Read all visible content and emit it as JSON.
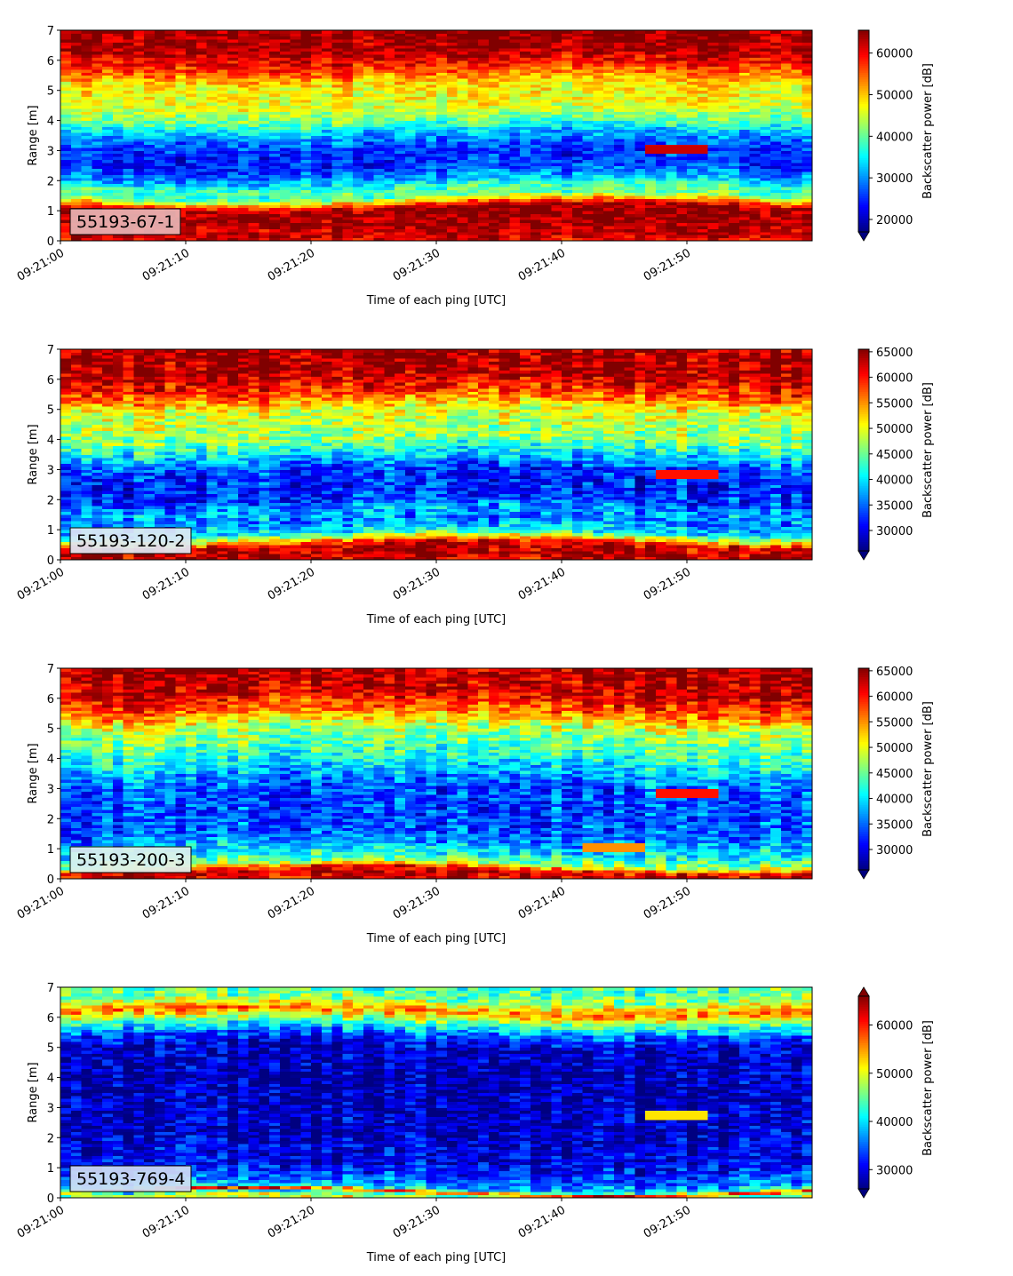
{
  "chart_data": [
    {
      "type": "heatmap",
      "label_box": "55193-67-1",
      "xlabel": "Time of each ping [UTC]",
      "ylabel": "Range [m]",
      "colorbar_label": "Backscatter power [dB]",
      "x_start": "09:21:00",
      "x_end": "09:21:59",
      "ylim": [
        0,
        7
      ],
      "x_ticks": [
        "09:21:00",
        "09:21:10",
        "09:21:20",
        "09:21:30",
        "09:21:40",
        "09:21:50"
      ],
      "y_ticks": [
        "0",
        "1",
        "2",
        "3",
        "4",
        "5",
        "6",
        "7"
      ],
      "colorbar_ticks": [
        "20000",
        "30000",
        "40000",
        "50000",
        "60000"
      ],
      "colorbar_range": [
        17000,
        65500
      ],
      "colorbar_extend": "min",
      "colormap": "jet",
      "profile": [
        [
          0.0,
          60000
        ],
        [
          0.2,
          62000
        ],
        [
          0.9,
          64000
        ],
        [
          1.1,
          63000
        ],
        [
          1.3,
          52000
        ],
        [
          1.5,
          40000
        ],
        [
          1.8,
          38000
        ],
        [
          2.0,
          32000
        ],
        [
          2.5,
          25000
        ],
        [
          3.0,
          25000
        ],
        [
          3.5,
          30000
        ],
        [
          4.0,
          40000
        ],
        [
          4.5,
          46000
        ],
        [
          5.2,
          48000
        ],
        [
          5.8,
          58000
        ],
        [
          6.4,
          64000
        ],
        [
          7.0,
          64000
        ]
      ],
      "features": [
        {
          "t": 49.0,
          "r": 3.1,
          "value": 62000,
          "note": "red target echo"
        }
      ]
    },
    {
      "type": "heatmap",
      "label_box": "55193-120-2",
      "xlabel": "Time of each ping [UTC]",
      "ylabel": "Range [m]",
      "colorbar_label": "Backscatter power [dB]",
      "x_start": "09:21:00",
      "x_end": "09:21:59",
      "ylim": [
        0,
        7
      ],
      "x_ticks": [
        "09:21:00",
        "09:21:10",
        "09:21:20",
        "09:21:30",
        "09:21:40",
        "09:21:50"
      ],
      "y_ticks": [
        "0",
        "1",
        "2",
        "3",
        "4",
        "5",
        "6",
        "7"
      ],
      "colorbar_ticks": [
        "30000",
        "35000",
        "40000",
        "45000",
        "50000",
        "55000",
        "60000",
        "65000"
      ],
      "colorbar_range": [
        26000,
        65500
      ],
      "colorbar_extend": "min",
      "colormap": "jet",
      "profile": [
        [
          0.0,
          62000
        ],
        [
          0.15,
          64000
        ],
        [
          0.5,
          62000
        ],
        [
          0.7,
          50000
        ],
        [
          0.9,
          40000
        ],
        [
          1.3,
          36000
        ],
        [
          1.6,
          38000
        ],
        [
          2.0,
          33000
        ],
        [
          2.5,
          32000
        ],
        [
          3.0,
          33000
        ],
        [
          3.5,
          40000
        ],
        [
          4.0,
          46000
        ],
        [
          4.5,
          48000
        ],
        [
          5.0,
          50000
        ],
        [
          5.5,
          58000
        ],
        [
          6.2,
          64000
        ],
        [
          7.0,
          64000
        ]
      ],
      "features": [
        {
          "t": 50.0,
          "r": 2.85,
          "value": 60000,
          "note": "red target echo"
        }
      ]
    },
    {
      "type": "heatmap",
      "label_box": "55193-200-3",
      "xlabel": "Time of each ping [UTC]",
      "ylabel": "Range [m]",
      "colorbar_label": "Backscatter power [dB]",
      "x_start": "09:21:00",
      "x_end": "09:21:59",
      "ylim": [
        0,
        7
      ],
      "x_ticks": [
        "09:21:00",
        "09:21:10",
        "09:21:20",
        "09:21:30",
        "09:21:40",
        "09:21:50"
      ],
      "y_ticks": [
        "0",
        "1",
        "2",
        "3",
        "4",
        "5",
        "6",
        "7"
      ],
      "colorbar_ticks": [
        "30000",
        "35000",
        "40000",
        "45000",
        "50000",
        "55000",
        "60000",
        "65000"
      ],
      "colorbar_range": [
        26000,
        65500
      ],
      "colorbar_extend": "min",
      "colormap": "jet",
      "profile": [
        [
          0.0,
          62000
        ],
        [
          0.12,
          64000
        ],
        [
          0.3,
          60000
        ],
        [
          0.5,
          46000
        ],
        [
          0.9,
          40000
        ],
        [
          1.5,
          35000
        ],
        [
          2.0,
          34000
        ],
        [
          2.5,
          34000
        ],
        [
          3.0,
          34000
        ],
        [
          3.5,
          38000
        ],
        [
          4.0,
          42000
        ],
        [
          4.5,
          45000
        ],
        [
          5.0,
          48000
        ],
        [
          5.5,
          56000
        ],
        [
          6.2,
          63000
        ],
        [
          7.0,
          64000
        ]
      ],
      "features": [
        {
          "t": 50.0,
          "r": 2.85,
          "value": 60000,
          "note": "red target echo"
        },
        {
          "t": 44.0,
          "r": 1.0,
          "value": 55000,
          "note": "small echo"
        }
      ]
    },
    {
      "type": "heatmap",
      "label_box": "55193-769-4",
      "xlabel": "Time of each ping [UTC]",
      "ylabel": "Range [m]",
      "colorbar_label": "Backscatter power [dB]",
      "x_start": "09:21:00",
      "x_end": "09:21:59",
      "ylim": [
        0,
        7
      ],
      "x_ticks": [
        "09:21:00",
        "09:21:10",
        "09:21:20",
        "09:21:30",
        "09:21:40",
        "09:21:50"
      ],
      "y_ticks": [
        "0",
        "1",
        "2",
        "3",
        "4",
        "5",
        "6",
        "7"
      ],
      "colorbar_ticks": [
        "30000",
        "40000",
        "50000",
        "60000"
      ],
      "colorbar_range": [
        26000,
        66000
      ],
      "colorbar_extend": "both",
      "colormap": "jet",
      "profile": [
        [
          0.0,
          50000
        ],
        [
          0.1,
          40000
        ],
        [
          0.2,
          62000
        ],
        [
          0.3,
          40000
        ],
        [
          0.5,
          36000
        ],
        [
          1.0,
          31000
        ],
        [
          2.0,
          29000
        ],
        [
          3.0,
          28500
        ],
        [
          4.0,
          28000
        ],
        [
          5.0,
          29000
        ],
        [
          5.4,
          34000
        ],
        [
          5.8,
          44000
        ],
        [
          6.2,
          56000
        ],
        [
          6.6,
          46000
        ],
        [
          7.0,
          44000
        ]
      ],
      "features": [
        {
          "t": 49.5,
          "r": 2.8,
          "value": 52000,
          "note": "yellow target echo"
        }
      ]
    }
  ]
}
